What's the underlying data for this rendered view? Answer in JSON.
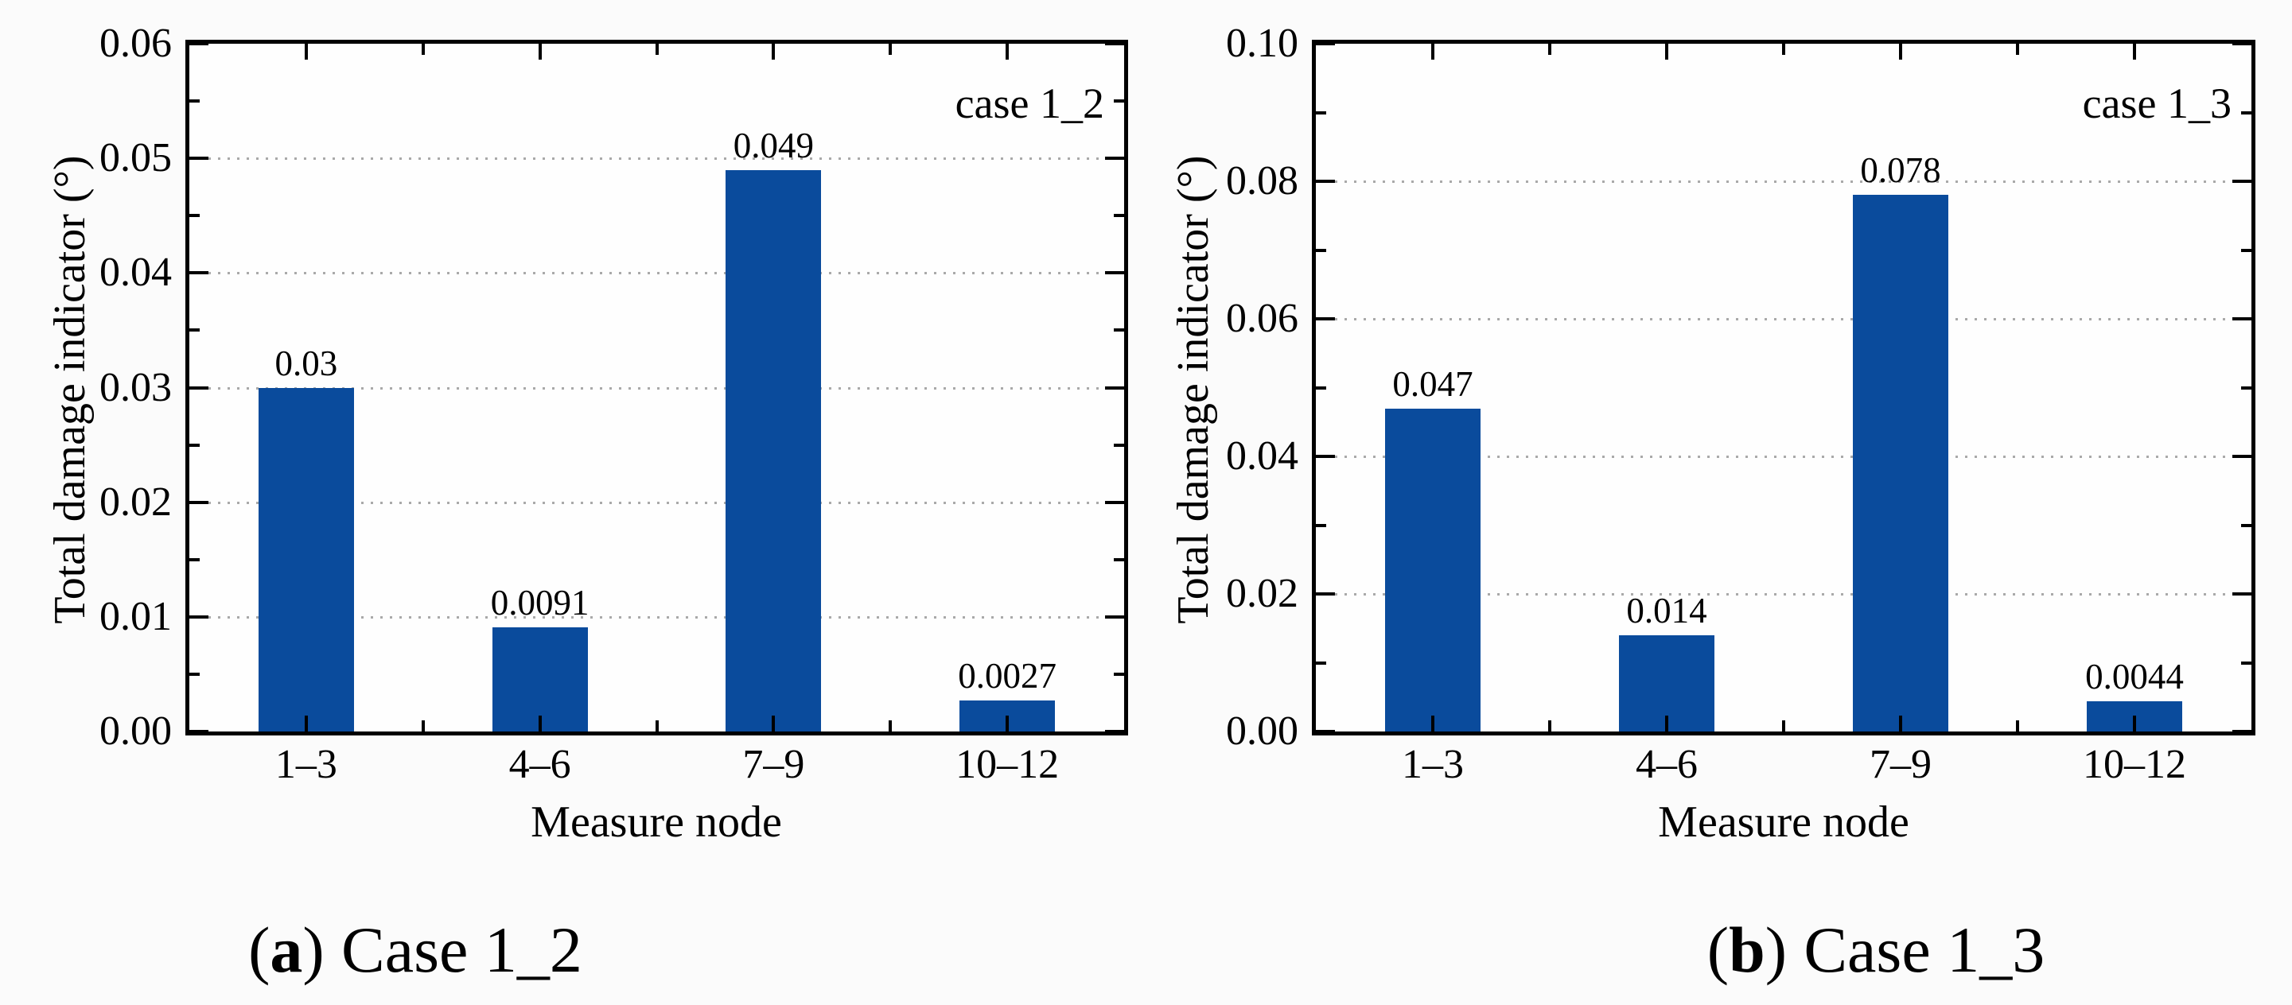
{
  "style": {
    "bar_color": "#0a4b9c",
    "grid_color": "#a9a9a9",
    "axis_color": "#000000",
    "background": "#fbfbfb"
  },
  "chart_data": [
    {
      "type": "bar",
      "annotation": "case 1_2",
      "xlabel": "Measure node",
      "ylabel": "Total damage indicator (°)",
      "categories": [
        "1–3",
        "4–6",
        "7–9",
        "10–12"
      ],
      "values": [
        0.03,
        0.0091,
        0.049,
        0.0027
      ],
      "value_labels": [
        "0.03",
        "0.0091",
        "0.049",
        "0.0027"
      ],
      "ylim": [
        0,
        0.06
      ],
      "ytick_step": 0.01,
      "yminor_step": 0.005,
      "ytick_labels": [
        "0.00",
        "0.01",
        "0.02",
        "0.03",
        "0.04",
        "0.05",
        "0.06"
      ],
      "grid": "dotted-horizontal",
      "legend": "none",
      "caption": {
        "open": "(",
        "letter": "a",
        "close": ")",
        "text": "Case 1_2"
      }
    },
    {
      "type": "bar",
      "annotation": "case 1_3",
      "xlabel": "Measure node",
      "ylabel": "Total damage indicator (°)",
      "categories": [
        "1–3",
        "4–6",
        "7–9",
        "10–12"
      ],
      "values": [
        0.047,
        0.014,
        0.078,
        0.0044
      ],
      "value_labels": [
        "0.047",
        "0.014",
        "0.078",
        "0.0044"
      ],
      "ylim": [
        0,
        0.1
      ],
      "ytick_step": 0.02,
      "yminor_step": 0.01,
      "ytick_labels": [
        "0.00",
        "0.02",
        "0.04",
        "0.06",
        "0.08",
        "0.10"
      ],
      "grid": "dotted-horizontal",
      "legend": "none",
      "caption": {
        "open": "(",
        "letter": "b",
        "close": ")",
        "text": "Case 1_3"
      }
    }
  ]
}
